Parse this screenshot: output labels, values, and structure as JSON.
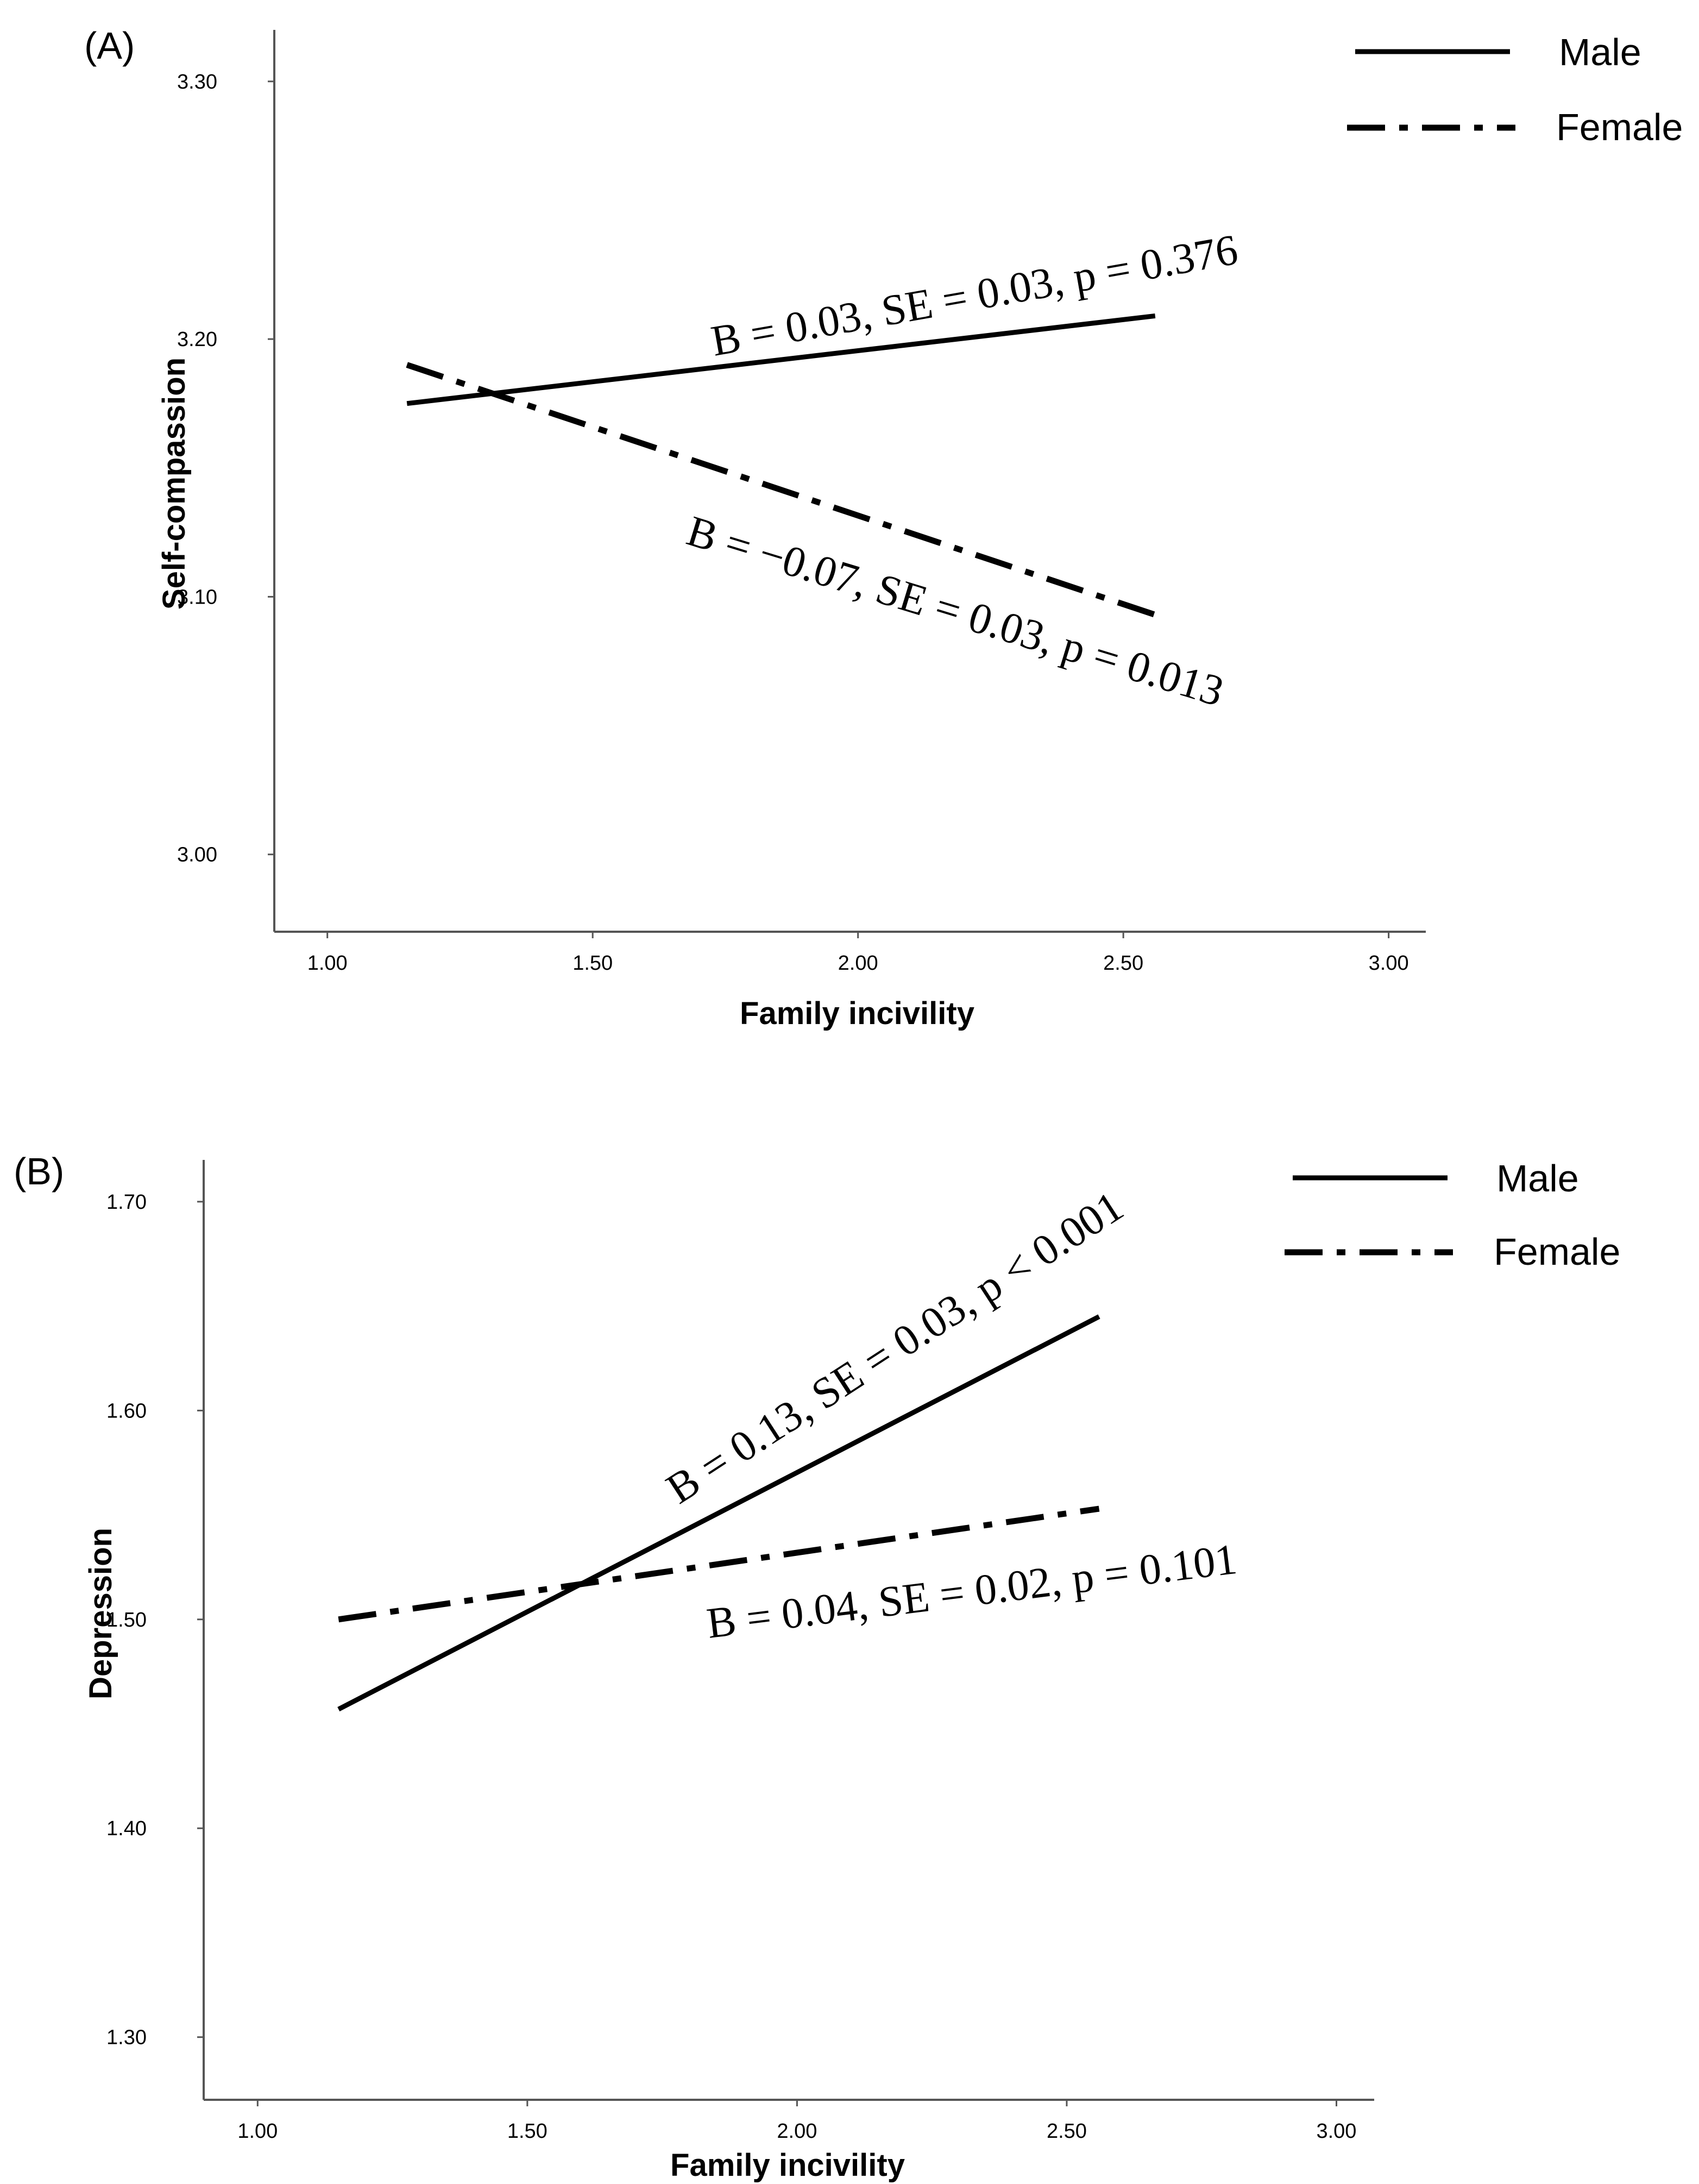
{
  "chart_data": [
    {
      "type": "line",
      "panel_label": "(A)",
      "xlabel": "Family incivility",
      "ylabel": "Self-compassion",
      "xlim": [
        0.9,
        3.07
      ],
      "ylim": [
        2.97,
        3.32
      ],
      "xticks": [
        "1.00",
        "1.50",
        "2.00",
        "2.50",
        "3.00"
      ],
      "yticks": [
        "3.00",
        "3.10",
        "3.20",
        "3.30"
      ],
      "legend": [
        "Male",
        "Female"
      ],
      "legend_position": "top-right",
      "series": [
        {
          "name": "Male",
          "style": "solid",
          "x": [
            1.15,
            2.56
          ],
          "y": [
            3.175,
            3.209
          ]
        },
        {
          "name": "Female",
          "style": "dash-dot",
          "x": [
            1.15,
            2.56
          ],
          "y": [
            3.19,
            3.093
          ]
        }
      ],
      "annotations": [
        {
          "series": "Male",
          "text": "B = 0.03, SE = 0.03, p = 0.376"
        },
        {
          "series": "Female",
          "text": "B = −0.07, SE = 0.03, p = 0.013"
        }
      ]
    },
    {
      "type": "line",
      "panel_label": "(B)",
      "xlabel": "Family incivility",
      "ylabel": "Depression",
      "xlim": [
        0.9,
        3.07
      ],
      "ylim": [
        1.27,
        1.72
      ],
      "xticks": [
        "1.00",
        "1.50",
        "2.00",
        "2.50",
        "3.00"
      ],
      "yticks": [
        "1.30",
        "1.40",
        "1.50",
        "1.60",
        "1.70"
      ],
      "legend": [
        "Male",
        "Female"
      ],
      "legend_position": "top-right",
      "series": [
        {
          "name": "Male",
          "style": "solid",
          "x": [
            1.15,
            2.56
          ],
          "y": [
            1.457,
            1.645
          ]
        },
        {
          "name": "Female",
          "style": "dash-dot",
          "x": [
            1.15,
            2.56
          ],
          "y": [
            1.5,
            1.553
          ]
        }
      ],
      "annotations": [
        {
          "series": "Male",
          "text": "B = 0.13, SE = 0.03, p < 0.001"
        },
        {
          "series": "Female",
          "text": "B = 0.04, SE = 0.02,  p = 0.101"
        }
      ]
    }
  ]
}
